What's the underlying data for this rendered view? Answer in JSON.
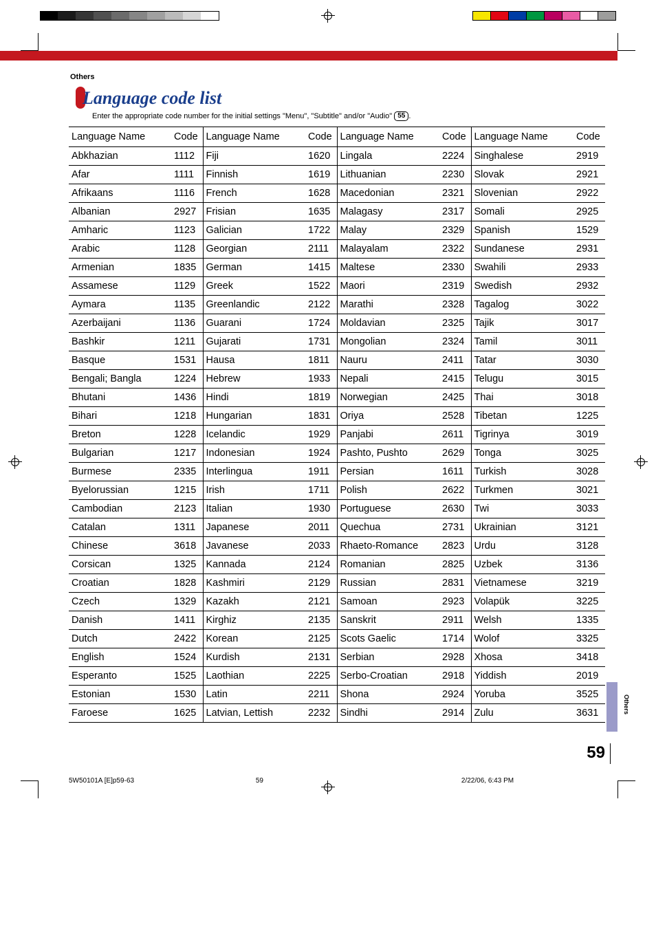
{
  "section": "Others",
  "title": "Language code list",
  "subtitle_pre": "Enter the appropriate code number for the initial settings \"Menu\", \"Subtitle\" and/or \"Audio\" ",
  "subtitle_ref": "55",
  "subtitle_post": ".",
  "header_name": "Language Name",
  "header_code": "Code",
  "side_tab": "Others",
  "page_num": "59",
  "footer": {
    "file": "5W50101A [E]p59-63",
    "page": "59",
    "date": "2/22/06, 6:43 PM"
  },
  "gradient": [
    "#000000",
    "#1b1b1b",
    "#363636",
    "#505050",
    "#6b6b6b",
    "#868686",
    "#a0a0a0",
    "#bbbbbb",
    "#d6d6d6",
    "#ffffff"
  ],
  "colorbar": [
    "#f7e600",
    "#e30613",
    "#003da5",
    "#009640",
    "#b9005f",
    "#e95ca5",
    "#ffffff",
    "#9d9d9c"
  ],
  "cols": [
    [
      [
        "Abkhazian",
        "1112"
      ],
      [
        "Afar",
        "1111"
      ],
      [
        "Afrikaans",
        "1116"
      ],
      [
        "Albanian",
        "2927"
      ],
      [
        "Amharic",
        "1123"
      ],
      [
        "Arabic",
        "1128"
      ],
      [
        "Armenian",
        "1835"
      ],
      [
        "Assamese",
        "1129"
      ],
      [
        "Aymara",
        "1135"
      ],
      [
        "Azerbaijani",
        "1136"
      ],
      [
        "Bashkir",
        "1211"
      ],
      [
        "Basque",
        "1531"
      ],
      [
        "Bengali; Bangla",
        "1224"
      ],
      [
        "Bhutani",
        "1436"
      ],
      [
        "Bihari",
        "1218"
      ],
      [
        "Breton",
        "1228"
      ],
      [
        "Bulgarian",
        "1217"
      ],
      [
        "Burmese",
        "2335"
      ],
      [
        "Byelorussian",
        "1215"
      ],
      [
        "Cambodian",
        "2123"
      ],
      [
        "Catalan",
        "1311"
      ],
      [
        "Chinese",
        "3618"
      ],
      [
        "Corsican",
        "1325"
      ],
      [
        "Croatian",
        "1828"
      ],
      [
        "Czech",
        "1329"
      ],
      [
        "Danish",
        "1411"
      ],
      [
        "Dutch",
        "2422"
      ],
      [
        "English",
        "1524"
      ],
      [
        "Esperanto",
        "1525"
      ],
      [
        "Estonian",
        "1530"
      ],
      [
        "Faroese",
        "1625"
      ]
    ],
    [
      [
        "Fiji",
        "1620"
      ],
      [
        "Finnish",
        "1619"
      ],
      [
        "French",
        "1628"
      ],
      [
        "Frisian",
        "1635"
      ],
      [
        "Galician",
        "1722"
      ],
      [
        "Georgian",
        "2111"
      ],
      [
        "German",
        "1415"
      ],
      [
        "Greek",
        "1522"
      ],
      [
        "Greenlandic",
        "2122"
      ],
      [
        "Guarani",
        "1724"
      ],
      [
        "Gujarati",
        "1731"
      ],
      [
        "Hausa",
        "1811"
      ],
      [
        "Hebrew",
        "1933"
      ],
      [
        "Hindi",
        "1819"
      ],
      [
        "Hungarian",
        "1831"
      ],
      [
        "Icelandic",
        "1929"
      ],
      [
        "Indonesian",
        "1924"
      ],
      [
        "Interlingua",
        "1911"
      ],
      [
        "Irish",
        "1711"
      ],
      [
        "Italian",
        "1930"
      ],
      [
        "Japanese",
        "2011"
      ],
      [
        "Javanese",
        "2033"
      ],
      [
        "Kannada",
        "2124"
      ],
      [
        "Kashmiri",
        "2129"
      ],
      [
        "Kazakh",
        "2121"
      ],
      [
        "Kirghiz",
        "2135"
      ],
      [
        "Korean",
        "2125"
      ],
      [
        "Kurdish",
        "2131"
      ],
      [
        "Laothian",
        "2225"
      ],
      [
        "Latin",
        "2211"
      ],
      [
        "Latvian, Lettish",
        "2232"
      ]
    ],
    [
      [
        "Lingala",
        "2224"
      ],
      [
        "Lithuanian",
        "2230"
      ],
      [
        "Macedonian",
        "2321"
      ],
      [
        "Malagasy",
        "2317"
      ],
      [
        "Malay",
        "2329"
      ],
      [
        "Malayalam",
        "2322"
      ],
      [
        "Maltese",
        "2330"
      ],
      [
        "Maori",
        "2319"
      ],
      [
        "Marathi",
        "2328"
      ],
      [
        "Moldavian",
        "2325"
      ],
      [
        "Mongolian",
        "2324"
      ],
      [
        "Nauru",
        "2411"
      ],
      [
        "Nepali",
        "2415"
      ],
      [
        "Norwegian",
        "2425"
      ],
      [
        "Oriya",
        "2528"
      ],
      [
        "Panjabi",
        "2611"
      ],
      [
        "Pashto, Pushto",
        "2629"
      ],
      [
        "Persian",
        "1611"
      ],
      [
        "Polish",
        "2622"
      ],
      [
        "Portuguese",
        "2630"
      ],
      [
        "Quechua",
        "2731"
      ],
      [
        "Rhaeto-Romance",
        "2823"
      ],
      [
        "Romanian",
        "2825"
      ],
      [
        "Russian",
        "2831"
      ],
      [
        "Samoan",
        "2923"
      ],
      [
        "Sanskrit",
        "2911"
      ],
      [
        "Scots Gaelic",
        "1714"
      ],
      [
        "Serbian",
        "2928"
      ],
      [
        "Serbo-Croatian",
        "2918"
      ],
      [
        "Shona",
        "2924"
      ],
      [
        "Sindhi",
        "2914"
      ]
    ],
    [
      [
        "Singhalese",
        "2919"
      ],
      [
        "Slovak",
        "2921"
      ],
      [
        "Slovenian",
        "2922"
      ],
      [
        "Somali",
        "2925"
      ],
      [
        "Spanish",
        "1529"
      ],
      [
        "Sundanese",
        "2931"
      ],
      [
        "Swahili",
        "2933"
      ],
      [
        "Swedish",
        "2932"
      ],
      [
        "Tagalog",
        "3022"
      ],
      [
        "Tajik",
        "3017"
      ],
      [
        "Tamil",
        "3011"
      ],
      [
        "Tatar",
        "3030"
      ],
      [
        "Telugu",
        "3015"
      ],
      [
        "Thai",
        "3018"
      ],
      [
        "Tibetan",
        "1225"
      ],
      [
        "Tigrinya",
        "3019"
      ],
      [
        "Tonga",
        "3025"
      ],
      [
        "Turkish",
        "3028"
      ],
      [
        "Turkmen",
        "3021"
      ],
      [
        "Twi",
        "3033"
      ],
      [
        "Ukrainian",
        "3121"
      ],
      [
        "Urdu",
        "3128"
      ],
      [
        "Uzbek",
        "3136"
      ],
      [
        "Vietnamese",
        "3219"
      ],
      [
        "Volapük",
        "3225"
      ],
      [
        "Welsh",
        "1335"
      ],
      [
        "Wolof",
        "3325"
      ],
      [
        "Xhosa",
        "3418"
      ],
      [
        "Yiddish",
        "2019"
      ],
      [
        "Yoruba",
        "3525"
      ],
      [
        "Zulu",
        "3631"
      ]
    ]
  ]
}
